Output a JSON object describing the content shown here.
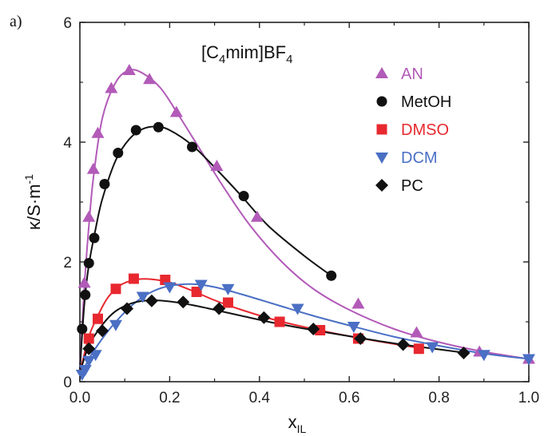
{
  "panel_label": "a)",
  "chart_data": {
    "type": "scatter",
    "title": "[C4mim]BF4",
    "title_parts": {
      "pre": "[C",
      "sub1": "4",
      "mid": "mim]BF",
      "sub2": "4"
    },
    "xlabel": "x",
    "xlabel_sub": "IL",
    "ylabel": "κ/S·m",
    "ylabel_sup": "-1",
    "xlim": [
      0,
      1.0
    ],
    "ylim": [
      0,
      6
    ],
    "xticks": [
      0.0,
      0.2,
      0.4,
      0.6,
      0.8,
      1.0
    ],
    "xtick_labels": [
      "0.0",
      "0.2",
      "0.4",
      "0.6",
      "0.8",
      "1.0"
    ],
    "yticks": [
      0,
      2,
      4,
      6
    ],
    "ytick_labels": [
      "0",
      "2",
      "4",
      "6"
    ],
    "grid": false,
    "legend_position": "top-right",
    "series": [
      {
        "name": "AN",
        "color": "#b25ab8",
        "marker": "triangle-up",
        "x": [
          0.01,
          0.02,
          0.03,
          0.04,
          0.07,
          0.11,
          0.155,
          0.215,
          0.305,
          0.395,
          0.62,
          0.75,
          0.89,
          1.0
        ],
        "y": [
          1.65,
          2.75,
          3.55,
          4.15,
          4.9,
          5.2,
          5.05,
          4.5,
          3.6,
          2.75,
          1.3,
          0.82,
          0.5,
          0.38
        ],
        "fit": {
          "x": [
            0,
            0.01,
            0.02,
            0.03,
            0.05,
            0.08,
            0.11,
            0.14,
            0.18,
            0.22,
            0.27,
            0.32,
            0.38,
            0.45,
            0.52,
            0.6,
            0.7,
            0.8,
            0.9,
            1.0
          ],
          "y": [
            0.2,
            1.6,
            2.6,
            3.4,
            4.4,
            5.0,
            5.2,
            5.15,
            4.9,
            4.45,
            3.85,
            3.25,
            2.6,
            2.0,
            1.55,
            1.2,
            0.88,
            0.66,
            0.5,
            0.38
          ]
        }
      },
      {
        "name": "MetOH",
        "color": "#111111",
        "marker": "circle",
        "x": [
          0.005,
          0.012,
          0.02,
          0.032,
          0.055,
          0.085,
          0.125,
          0.175,
          0.25,
          0.365,
          0.56
        ],
        "y": [
          0.88,
          1.45,
          1.98,
          2.4,
          3.3,
          3.82,
          4.2,
          4.25,
          3.92,
          3.1,
          1.77
        ],
        "fit": {
          "x": [
            0,
            0.01,
            0.02,
            0.035,
            0.05,
            0.08,
            0.11,
            0.14,
            0.17,
            0.2,
            0.25,
            0.3,
            0.36,
            0.42,
            0.5,
            0.56
          ],
          "y": [
            0.2,
            1.3,
            1.95,
            2.55,
            3.05,
            3.7,
            4.05,
            4.22,
            4.26,
            4.2,
            3.95,
            3.58,
            3.1,
            2.6,
            2.1,
            1.77
          ]
        }
      },
      {
        "name": "DMSO",
        "color": "#e8282f",
        "marker": "square",
        "x": [
          0.02,
          0.04,
          0.08,
          0.12,
          0.19,
          0.26,
          0.33,
          0.445,
          0.535,
          0.62,
          0.755
        ],
        "y": [
          0.72,
          1.05,
          1.55,
          1.72,
          1.7,
          1.5,
          1.32,
          1.0,
          0.86,
          0.72,
          0.55
        ],
        "fit": {
          "x": [
            0,
            0.02,
            0.04,
            0.06,
            0.08,
            0.1,
            0.13,
            0.16,
            0.2,
            0.25,
            0.3,
            0.36,
            0.44,
            0.52,
            0.6,
            0.7,
            0.76
          ],
          "y": [
            0.15,
            0.75,
            1.1,
            1.38,
            1.55,
            1.65,
            1.71,
            1.71,
            1.66,
            1.52,
            1.36,
            1.2,
            1.02,
            0.88,
            0.76,
            0.63,
            0.56
          ]
        }
      },
      {
        "name": "DCM",
        "color": "#4a6fc4",
        "marker": "triangle-down",
        "x": [
          0.005,
          0.012,
          0.02,
          0.035,
          0.08,
          0.14,
          0.2,
          0.27,
          0.33,
          0.485,
          0.61,
          0.785,
          0.9,
          1.0
        ],
        "y": [
          0.12,
          0.2,
          0.35,
          0.45,
          0.95,
          1.42,
          1.58,
          1.62,
          1.55,
          1.22,
          0.92,
          0.58,
          0.45,
          0.38
        ],
        "fit": {
          "x": [
            0,
            0.02,
            0.05,
            0.08,
            0.12,
            0.16,
            0.2,
            0.25,
            0.3,
            0.36,
            0.44,
            0.52,
            0.6,
            0.7,
            0.8,
            0.9,
            1.0
          ],
          "y": [
            0.05,
            0.38,
            0.72,
            1.0,
            1.3,
            1.5,
            1.6,
            1.63,
            1.58,
            1.46,
            1.28,
            1.1,
            0.94,
            0.75,
            0.6,
            0.47,
            0.38
          ]
        }
      },
      {
        "name": "PC",
        "color": "#111111",
        "marker": "diamond",
        "x": [
          0.02,
          0.05,
          0.105,
          0.16,
          0.23,
          0.31,
          0.41,
          0.52,
          0.625,
          0.72,
          0.855
        ],
        "y": [
          0.55,
          0.85,
          1.22,
          1.35,
          1.33,
          1.22,
          1.07,
          0.88,
          0.72,
          0.62,
          0.48
        ],
        "fit": {
          "x": [
            0,
            0.02,
            0.05,
            0.08,
            0.12,
            0.16,
            0.2,
            0.25,
            0.3,
            0.36,
            0.44,
            0.52,
            0.6,
            0.7,
            0.8,
            0.86
          ],
          "y": [
            0.15,
            0.6,
            0.95,
            1.18,
            1.32,
            1.36,
            1.34,
            1.28,
            1.2,
            1.1,
            0.97,
            0.86,
            0.76,
            0.64,
            0.54,
            0.48
          ]
        }
      }
    ]
  }
}
